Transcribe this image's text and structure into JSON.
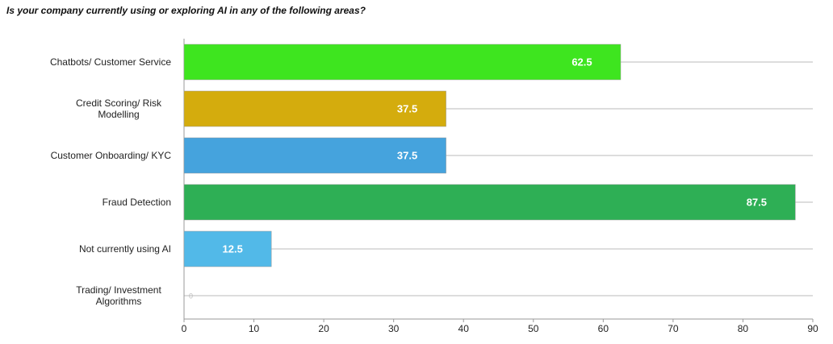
{
  "chart_data": {
    "type": "hbar",
    "title": "Is your company currently using or exploring AI in any of the following areas?",
    "categories": [
      "Chatbots/ Customer Service",
      "Credit Scoring/ Risk Modelling",
      "Customer Onboarding/ KYC",
      "Fraud Detection",
      "Not currently using AI",
      "Trading/ Investment Algorithms"
    ],
    "values": [
      62.5,
      37.5,
      37.5,
      87.5,
      12.5,
      0
    ],
    "colors": [
      "#3ee51f",
      "#d4ac0d",
      "#45a3dd",
      "#2eaf55",
      "#52b9e8",
      "#cccccc"
    ],
    "xlim": [
      0,
      90
    ],
    "xticks": [
      0,
      10,
      20,
      30,
      40,
      50,
      60,
      70,
      80,
      90
    ],
    "grid": true
  }
}
